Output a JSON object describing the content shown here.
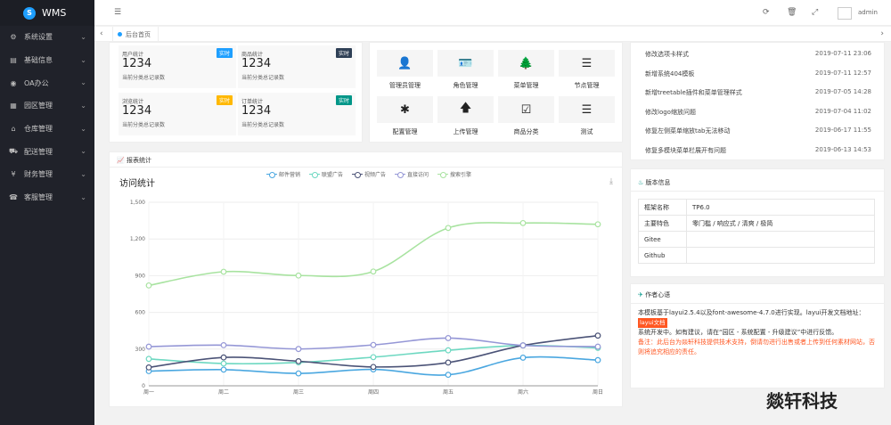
{
  "app": {
    "name": "WMS",
    "logo_letter": "S"
  },
  "sidebar": {
    "items": [
      {
        "label": "系统设置",
        "icon": "gear-icon"
      },
      {
        "label": "基础信息",
        "icon": "doc-icon"
      },
      {
        "label": "OA办公",
        "icon": "oa-icon"
      },
      {
        "label": "园区管理",
        "icon": "building-icon"
      },
      {
        "label": "仓库管理",
        "icon": "warehouse-icon"
      },
      {
        "label": "配送管理",
        "icon": "truck-icon"
      },
      {
        "label": "财务管理",
        "icon": "money-icon"
      },
      {
        "label": "客服管理",
        "icon": "service-icon"
      }
    ]
  },
  "topbar": {
    "admin": "admin"
  },
  "tabs": {
    "home": "后台首页"
  },
  "stats": [
    {
      "title": "用户统计",
      "badge": "实时",
      "value": "1234",
      "sub": "当前分类总记录数",
      "color": "#1e9fff"
    },
    {
      "title": "商品统计",
      "badge": "实时",
      "value": "1234",
      "sub": "当前分类总记录数",
      "color": "#2f4056"
    },
    {
      "title": "浏览统计",
      "badge": "实时",
      "value": "1234",
      "sub": "当前分类总记录数",
      "color": "#ffb800"
    },
    {
      "title": "订单统计",
      "badge": "实时",
      "value": "1234",
      "sub": "当前分类总记录数",
      "color": "#009688"
    }
  ],
  "quick": [
    {
      "label": "管理员管理",
      "icon": "user-icon",
      "glyph": "👤"
    },
    {
      "label": "角色管理",
      "icon": "role-icon",
      "glyph": "🪪"
    },
    {
      "label": "菜单管理",
      "icon": "tree-icon",
      "glyph": "🌲"
    },
    {
      "label": "节点管理",
      "icon": "list-icon",
      "glyph": "☰"
    },
    {
      "label": "配置管理",
      "icon": "asterisk-icon",
      "glyph": "✱"
    },
    {
      "label": "上传管理",
      "icon": "upload-icon",
      "glyph": "🡅"
    },
    {
      "label": "商品分类",
      "icon": "calendar-check-icon",
      "glyph": "☑"
    },
    {
      "label": "测试",
      "icon": "list-icon",
      "glyph": "☰"
    }
  ],
  "chart_panel": {
    "header": "报表统计",
    "title": "访问统计"
  },
  "chart_data": {
    "type": "line",
    "title": "访问统计",
    "categories": [
      "周一",
      "周二",
      "周三",
      "周四",
      "周五",
      "周六",
      "周日"
    ],
    "ylim": [
      0,
      1500
    ],
    "yticks": [
      "0",
      "300",
      "600",
      "900",
      "1,200",
      "1,500"
    ],
    "series": [
      {
        "name": "邮件营销",
        "color": "#4aa7e0",
        "values": [
          120,
          132,
          101,
          134,
          90,
          230,
          210
        ]
      },
      {
        "name": "联盟广告",
        "color": "#6dd8c1",
        "values": [
          220,
          182,
          191,
          234,
          290,
          330,
          310
        ]
      },
      {
        "name": "视频广告",
        "color": "#4b5377",
        "values": [
          150,
          232,
          201,
          154,
          190,
          330,
          410
        ]
      },
      {
        "name": "直接访问",
        "color": "#9597d6",
        "values": [
          320,
          332,
          301,
          334,
          390,
          330,
          320
        ]
      },
      {
        "name": "搜索引擎",
        "color": "#a8e3a0",
        "values": [
          820,
          932,
          901,
          934,
          1290,
          1330,
          1320
        ]
      }
    ],
    "legend_position": "top-center",
    "grid": true
  },
  "news": [
    {
      "title": "修改选项卡样式",
      "date": "2019-07-11 23:06"
    },
    {
      "title": "新增系统404模板",
      "date": "2019-07-11 12:57"
    },
    {
      "title": "新增treetable插件和菜单管理样式",
      "date": "2019-07-05 14:28"
    },
    {
      "title": "修改logo缩放问题",
      "date": "2019-07-04 11:02"
    },
    {
      "title": "修复左侧菜单缩放tab无法移动",
      "date": "2019-06-17 11:55"
    },
    {
      "title": "修复多模块菜单栏展开有问题",
      "date": "2019-06-13 14:53"
    }
  ],
  "version": {
    "header": "版本信息",
    "rows": [
      {
        "k": "框架名称",
        "v": "TP6.0"
      },
      {
        "k": "主要特色",
        "v": "零门槛 / 响应式 / 清爽 / 极简"
      },
      {
        "k": "Gitee",
        "v": ""
      },
      {
        "k": "Github",
        "v": ""
      }
    ]
  },
  "author": {
    "header": "作者心语",
    "line1": "本模板基于layui2.5.4以及font-awesome-4.7.0进行实现。layui开发文档地址：",
    "tag": "layui文档",
    "line2": "系统开发中。如有建议，请在“园区 - 系统配置 - 升级建议”中进行反馈。",
    "red": "备注：此后台为燚轩科技提供技术支持，倒请勿进行出售或者上传到任何素材网站，否则将追究相应的责任。"
  },
  "watermark": "燚轩科技"
}
